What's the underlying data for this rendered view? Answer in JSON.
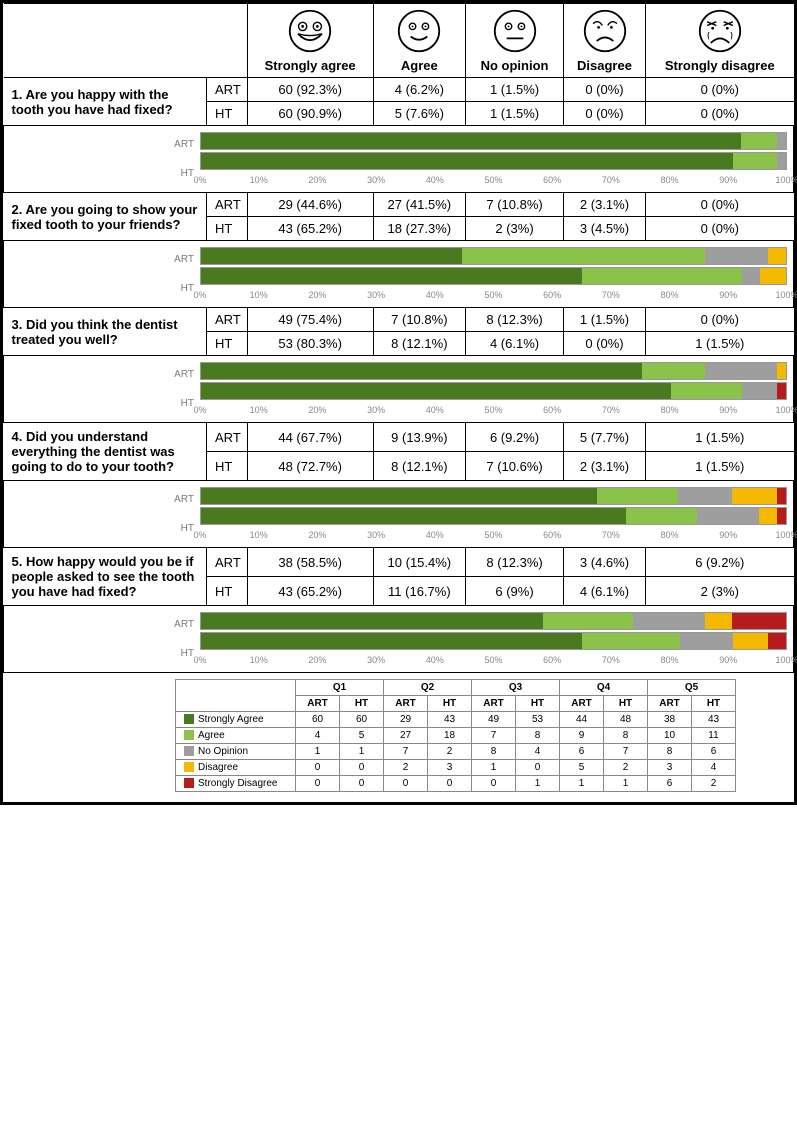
{
  "colors": {
    "strongly_agree": "#4a7a1f",
    "agree": "#8bc34a",
    "no_opinion": "#9e9e9e",
    "disagree": "#f5b800",
    "strongly_disagree": "#b71c1c",
    "axis_text": "#888888",
    "bar_label": "#7a7a7a"
  },
  "headers": {
    "sa": "Strongly agree",
    "a": "Agree",
    "no": "No opinion",
    "d": "Disagree",
    "sd": "Strongly disagree"
  },
  "axis_ticks": [
    "0%",
    "10%",
    "20%",
    "30%",
    "40%",
    "50%",
    "60%",
    "70%",
    "80%",
    "90%",
    "100%"
  ],
  "groups": [
    "ART",
    "HT"
  ],
  "questions": [
    {
      "label": "1. Are you happy with the tooth you have had fixed?",
      "rows": {
        "ART": {
          "cells": [
            "60 (92.3%)",
            "4 (6.2%)",
            "1 (1.5%)",
            "0 (0%)",
            "0 (0%)"
          ],
          "percents": [
            92.3,
            6.2,
            1.5,
            0,
            0
          ]
        },
        "HT": {
          "cells": [
            "60 (90.9%)",
            "5 (7.6%)",
            "1 (1.5%)",
            "0 (0%)",
            "0 (0%)"
          ],
          "percents": [
            90.9,
            7.6,
            1.5,
            0,
            0
          ]
        }
      }
    },
    {
      "label": "2. Are you going to show your fixed tooth to your friends?",
      "rows": {
        "ART": {
          "cells": [
            "29 (44.6%)",
            "27 (41.5%)",
            "7 (10.8%)",
            "2 (3.1%)",
            "0 (0%)"
          ],
          "percents": [
            44.6,
            41.5,
            10.8,
            3.1,
            0
          ]
        },
        "HT": {
          "cells": [
            "43 (65.2%)",
            "18 (27.3%)",
            "2 (3%)",
            "3 (4.5%)",
            "0 (0%)"
          ],
          "percents": [
            65.2,
            27.3,
            3.0,
            4.5,
            0
          ]
        }
      }
    },
    {
      "label": "3. Did you think the dentist treated you well?",
      "rows": {
        "ART": {
          "cells": [
            "49 (75.4%)",
            "7 (10.8%)",
            "8 (12.3%)",
            "1 (1.5%)",
            "0 (0%)"
          ],
          "percents": [
            75.4,
            10.8,
            12.3,
            1.5,
            0
          ]
        },
        "HT": {
          "cells": [
            "53 (80.3%)",
            "8 (12.1%)",
            "4 (6.1%)",
            "0 (0%)",
            "1 (1.5%)"
          ],
          "percents": [
            80.3,
            12.1,
            6.1,
            0,
            1.5
          ]
        }
      }
    },
    {
      "label": "4. Did you understand everything the dentist was going to do to your tooth?",
      "rows": {
        "ART": {
          "cells": [
            "44 (67.7%)",
            "9 (13.9%)",
            "6 (9.2%)",
            "5 (7.7%)",
            "1 (1.5%)"
          ],
          "percents": [
            67.7,
            13.9,
            9.2,
            7.7,
            1.5
          ]
        },
        "HT": {
          "cells": [
            "48 (72.7%)",
            "8 (12.1%)",
            "7 (10.6%)",
            "2 (3.1%)",
            "1 (1.5%)"
          ],
          "percents": [
            72.7,
            12.1,
            10.6,
            3.1,
            1.5
          ]
        }
      }
    },
    {
      "label": "5. How happy would you be if people asked to see the tooth you have had fixed?",
      "rows": {
        "ART": {
          "cells": [
            "38 (58.5%)",
            "10 (15.4%)",
            "8 (12.3%)",
            "3 (4.6%)",
            "6 (9.2%)"
          ],
          "percents": [
            58.5,
            15.4,
            12.3,
            4.6,
            9.2
          ]
        },
        "HT": {
          "cells": [
            "43 (65.2%)",
            "11 (16.7%)",
            "6 (9%)",
            "4 (6.1%)",
            "2 (3%)"
          ],
          "percents": [
            65.2,
            16.7,
            9.0,
            6.1,
            3.0
          ]
        }
      }
    }
  ],
  "summary": {
    "col_headers": [
      "Q1",
      "Q2",
      "Q3",
      "Q4",
      "Q5"
    ],
    "sub_headers": [
      "ART",
      "HT"
    ],
    "rows": [
      {
        "label": "Strongly Agree",
        "color_key": "strongly_agree",
        "vals": [
          60,
          60,
          29,
          43,
          49,
          53,
          44,
          48,
          38,
          43
        ]
      },
      {
        "label": "Agree",
        "color_key": "agree",
        "vals": [
          4,
          5,
          27,
          18,
          7,
          8,
          9,
          8,
          10,
          11
        ]
      },
      {
        "label": "No Opinion",
        "color_key": "no_opinion",
        "vals": [
          1,
          1,
          7,
          2,
          8,
          4,
          6,
          7,
          8,
          6
        ]
      },
      {
        "label": "Disagree",
        "color_key": "disagree",
        "vals": [
          0,
          0,
          2,
          3,
          1,
          0,
          5,
          2,
          3,
          4
        ]
      },
      {
        "label": "Strongly Disagree",
        "color_key": "strongly_disagree",
        "vals": [
          0,
          0,
          0,
          0,
          0,
          1,
          1,
          1,
          6,
          2
        ]
      }
    ]
  }
}
